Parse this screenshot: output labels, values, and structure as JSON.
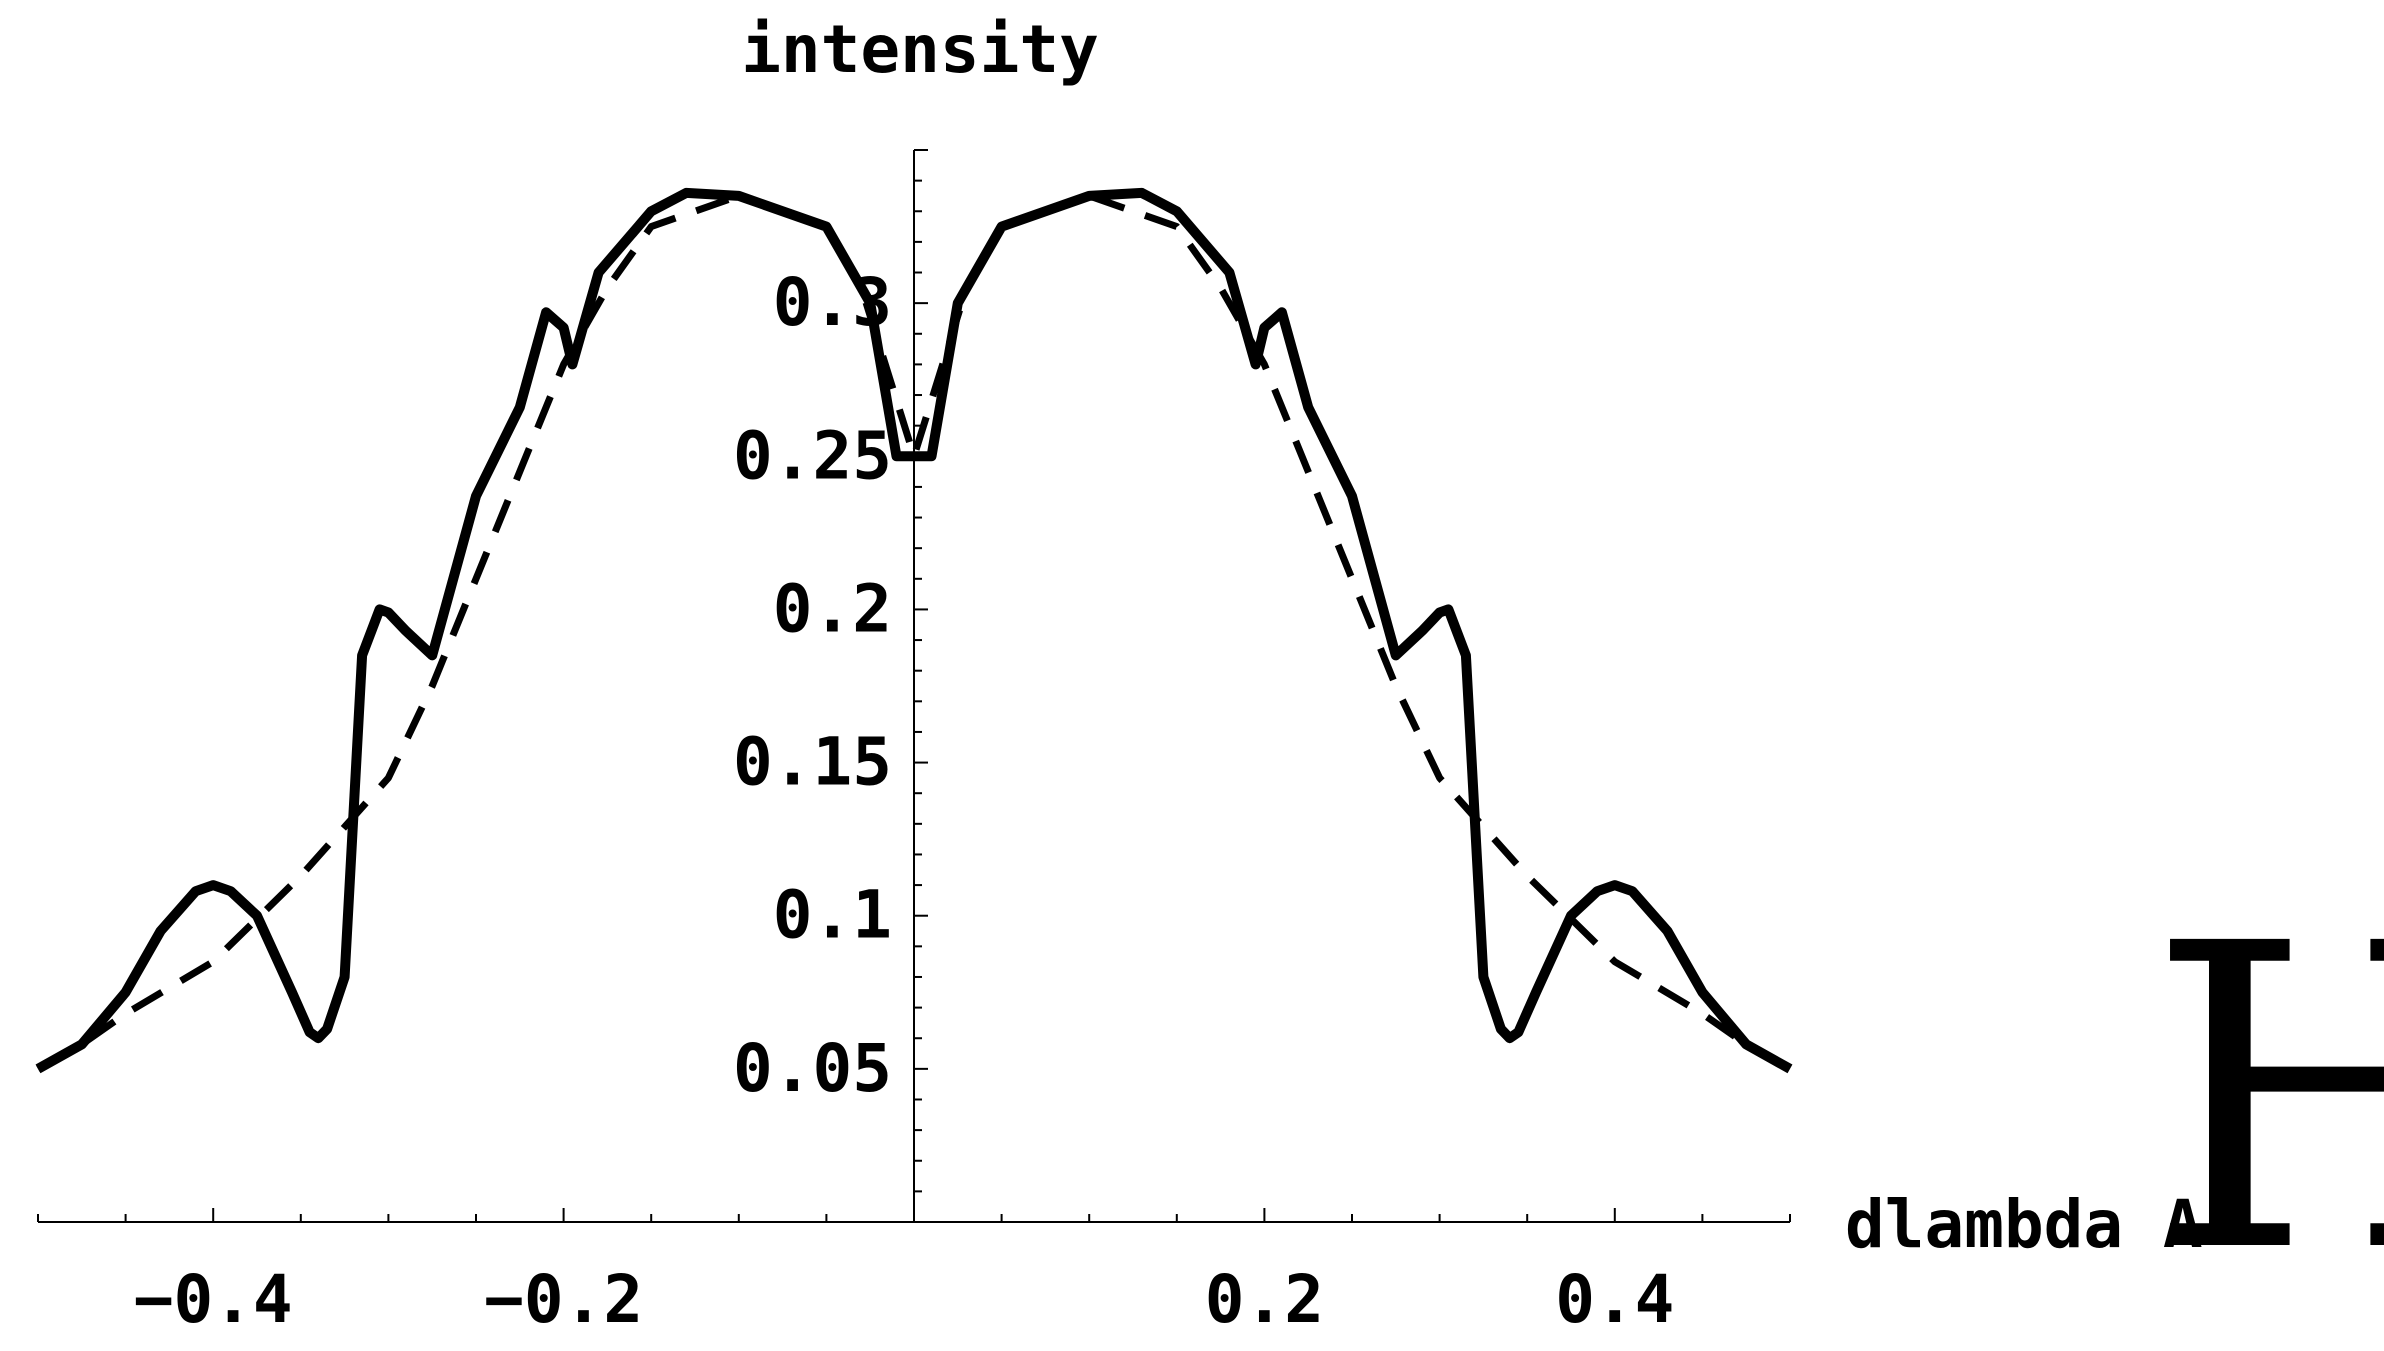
{
  "chart_data": {
    "type": "line",
    "xlabel": "dlambda A",
    "ylabel": "intensity",
    "xlim": [
      -0.5,
      0.5
    ],
    "ylim": [
      0.0,
      0.35
    ],
    "x_ticks": [
      {
        "value": -0.4,
        "label": "−0.4"
      },
      {
        "value": -0.2,
        "label": "−0.2"
      },
      {
        "value": 0.2,
        "label": "0.2"
      },
      {
        "value": 0.4,
        "label": "0.4"
      }
    ],
    "y_ticks": [
      {
        "value": 0.05,
        "label": "0.05"
      },
      {
        "value": 0.1,
        "label": "0.1"
      },
      {
        "value": 0.15,
        "label": "0.15"
      },
      {
        "value": 0.2,
        "label": "0.2"
      },
      {
        "value": 0.25,
        "label": "0.25"
      },
      {
        "value": 0.3,
        "label": "0.3"
      }
    ],
    "series": [
      {
        "style": "solid",
        "points": [
          [
            -0.5,
            0.05
          ],
          [
            -0.475,
            0.058
          ],
          [
            -0.45,
            0.075
          ],
          [
            -0.43,
            0.095
          ],
          [
            -0.41,
            0.108
          ],
          [
            -0.4,
            0.11
          ],
          [
            -0.39,
            0.108
          ],
          [
            -0.375,
            0.1
          ],
          [
            -0.355,
            0.075
          ],
          [
            -0.345,
            0.062
          ],
          [
            -0.34,
            0.06
          ],
          [
            -0.335,
            0.063
          ],
          [
            -0.325,
            0.08
          ],
          [
            -0.315,
            0.185
          ],
          [
            -0.305,
            0.2
          ],
          [
            -0.3,
            0.199
          ],
          [
            -0.29,
            0.193
          ],
          [
            -0.275,
            0.185
          ],
          [
            -0.25,
            0.237
          ],
          [
            -0.225,
            0.266
          ],
          [
            -0.21,
            0.297
          ],
          [
            -0.2,
            0.292
          ],
          [
            -0.195,
            0.28
          ],
          [
            -0.18,
            0.31
          ],
          [
            -0.15,
            0.33
          ],
          [
            -0.13,
            0.336
          ],
          [
            -0.1,
            0.335
          ],
          [
            -0.05,
            0.325
          ],
          [
            -0.025,
            0.3
          ],
          [
            -0.01,
            0.25
          ],
          [
            0.01,
            0.25
          ],
          [
            0.025,
            0.3
          ],
          [
            0.05,
            0.325
          ],
          [
            0.1,
            0.335
          ],
          [
            0.13,
            0.336
          ],
          [
            0.15,
            0.33
          ],
          [
            0.18,
            0.31
          ],
          [
            0.195,
            0.28
          ],
          [
            0.2,
            0.292
          ],
          [
            0.21,
            0.297
          ],
          [
            0.225,
            0.266
          ],
          [
            0.25,
            0.237
          ],
          [
            0.275,
            0.185
          ],
          [
            0.29,
            0.193
          ],
          [
            0.3,
            0.199
          ],
          [
            0.305,
            0.2
          ],
          [
            0.315,
            0.185
          ],
          [
            0.325,
            0.08
          ],
          [
            0.335,
            0.063
          ],
          [
            0.34,
            0.06
          ],
          [
            0.345,
            0.062
          ],
          [
            0.355,
            0.075
          ],
          [
            0.375,
            0.1
          ],
          [
            0.39,
            0.108
          ],
          [
            0.4,
            0.11
          ],
          [
            0.41,
            0.108
          ],
          [
            0.43,
            0.095
          ],
          [
            0.45,
            0.075
          ],
          [
            0.475,
            0.058
          ],
          [
            0.5,
            0.05
          ]
        ]
      },
      {
        "style": "dashed",
        "points": [
          [
            -0.5,
            0.05
          ],
          [
            -0.475,
            0.058
          ],
          [
            -0.45,
            0.068
          ],
          [
            -0.4,
            0.085
          ],
          [
            -0.35,
            0.113
          ],
          [
            -0.3,
            0.145
          ],
          [
            -0.275,
            0.175
          ],
          [
            -0.25,
            0.21
          ],
          [
            -0.225,
            0.245
          ],
          [
            -0.2,
            0.28
          ],
          [
            -0.175,
            0.305
          ],
          [
            -0.15,
            0.325
          ],
          [
            -0.1,
            0.335
          ],
          [
            -0.05,
            0.325
          ],
          [
            -0.03,
            0.305
          ],
          [
            0.0,
            0.25
          ],
          [
            0.03,
            0.305
          ],
          [
            0.05,
            0.325
          ],
          [
            0.1,
            0.335
          ],
          [
            0.15,
            0.325
          ],
          [
            0.175,
            0.305
          ],
          [
            0.2,
            0.28
          ],
          [
            0.225,
            0.245
          ],
          [
            0.25,
            0.21
          ],
          [
            0.275,
            0.175
          ],
          [
            0.3,
            0.145
          ],
          [
            0.35,
            0.113
          ],
          [
            0.4,
            0.085
          ],
          [
            0.45,
            0.068
          ],
          [
            0.475,
            0.058
          ],
          [
            0.5,
            0.05
          ]
        ]
      }
    ]
  },
  "artifact_glyph": "H"
}
